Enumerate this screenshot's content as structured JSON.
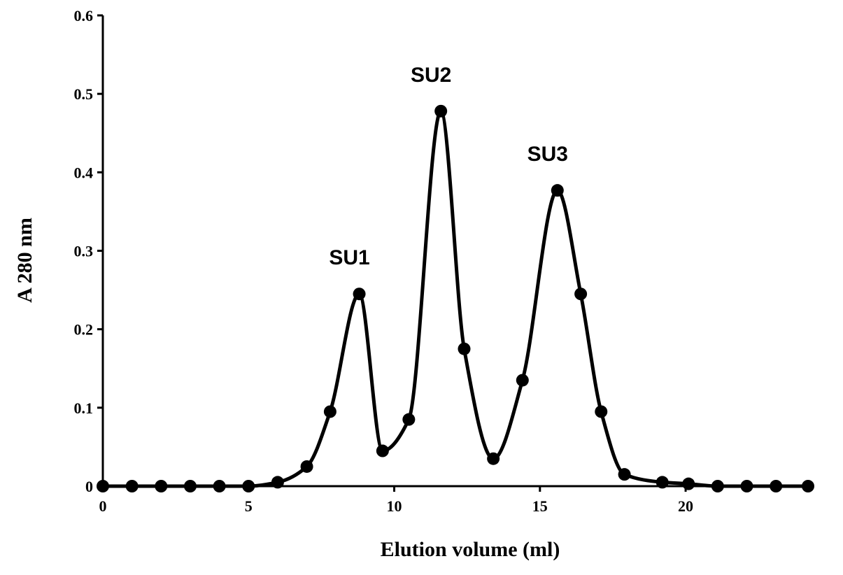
{
  "chart_data": {
    "type": "scatter",
    "title": "",
    "xlabel": "Elution volume (ml)",
    "ylabel": "A 280 nm",
    "xlim": [
      0,
      24.2
    ],
    "ylim": [
      0,
      0.6
    ],
    "x_ticks": [
      0,
      5,
      10,
      15,
      20
    ],
    "x_tick_labels": [
      "0",
      "5",
      "10",
      "15",
      "20"
    ],
    "y_ticks": [
      0,
      0.1,
      0.2,
      0.3,
      0.4,
      0.5,
      0.6
    ],
    "y_tick_labels": [
      "0",
      "0.1",
      "0.2",
      "0.3",
      "0.4",
      "0.5",
      "0.6"
    ],
    "grid": false,
    "legend": "none",
    "smooth_line": true,
    "series": [
      {
        "x": [
          0,
          1,
          2,
          3,
          4,
          5,
          6,
          7,
          7.8,
          8.8,
          9.6,
          10.5,
          11.6,
          12.4,
          13.4,
          14.4,
          15.6,
          16.4,
          17.1,
          17.9,
          19.2,
          20.1,
          21.1,
          22.1,
          23.1,
          24.2
        ],
        "y": [
          0,
          0,
          0,
          0,
          0,
          0,
          0.005,
          0.025,
          0.095,
          0.245,
          0.045,
          0.085,
          0.478,
          0.175,
          0.035,
          0.135,
          0.377,
          0.245,
          0.095,
          0.015,
          0.005,
          0.003,
          0,
          0,
          0,
          0
        ]
      }
    ],
    "annotations": [
      {
        "text": "SU1",
        "x": 8.8,
        "y": 0.245
      },
      {
        "text": "SU2",
        "x": 11.6,
        "y": 0.478
      },
      {
        "text": "SU3",
        "x": 15.6,
        "y": 0.377
      }
    ]
  }
}
